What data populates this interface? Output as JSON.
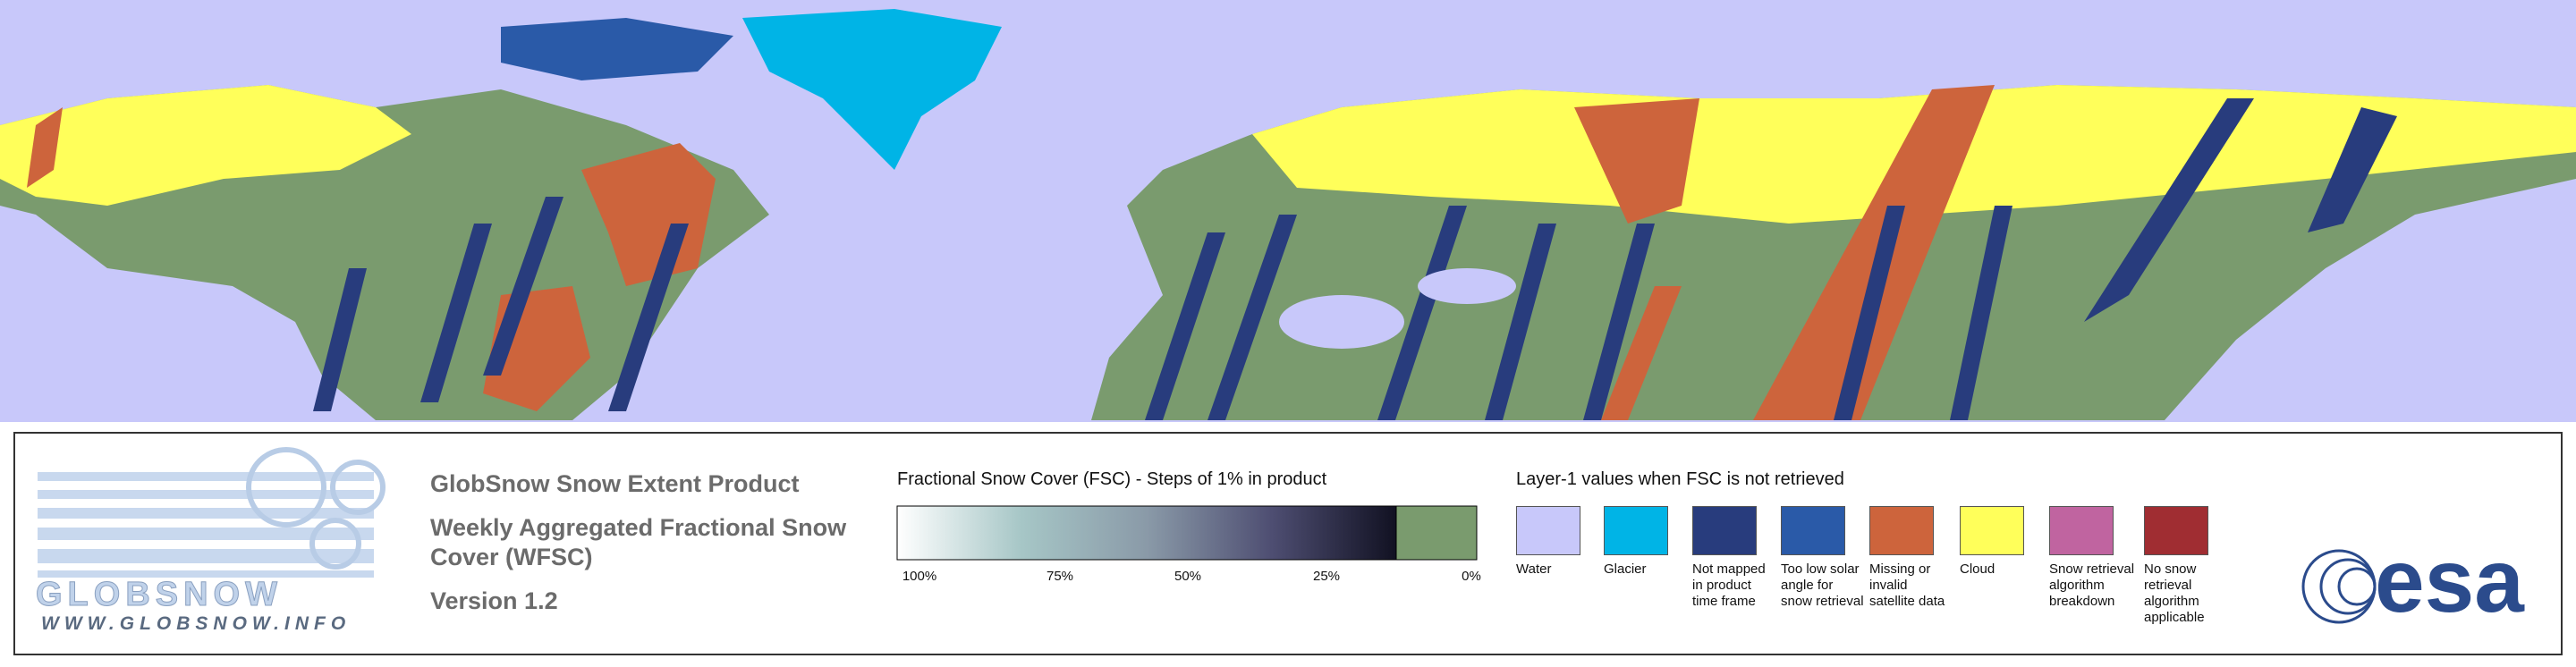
{
  "logo": {
    "name": "GLOBSNOW",
    "url": "WWW.GLOBSNOW.INFO"
  },
  "product": {
    "title": "GlobSnow Snow Extent Product",
    "subtitle": "Weekly Aggregated Fractional Snow Cover (WFSC)",
    "version": "Version 1.2"
  },
  "fsc_legend": {
    "title": "Fractional Snow Cover (FSC) - Steps of 1% in product",
    "ticks": [
      "100%",
      "75%",
      "50%",
      "25%",
      "0%"
    ]
  },
  "layer1_legend": {
    "title": "Layer-1 values when FSC is not retrieved",
    "items": [
      {
        "label": "Water",
        "color": "#c8c8fa"
      },
      {
        "label": "Glacier",
        "color": "#00b4e6"
      },
      {
        "label": "Not mapped in product time frame",
        "color": "#283c7d"
      },
      {
        "label": "Too low solar angle for snow retrieval",
        "color": "#2a5aa8"
      },
      {
        "label": "Missing or invalid satellite data",
        "color": "#cd643c"
      },
      {
        "label": "Cloud",
        "color": "#ffff5a"
      },
      {
        "label": "Snow retrieval algorithm breakdown",
        "color": "#c064a0"
      },
      {
        "label": "No snow retrieval algorithm applicable",
        "color": "#a02d32"
      }
    ]
  },
  "esa_logo": "esa"
}
